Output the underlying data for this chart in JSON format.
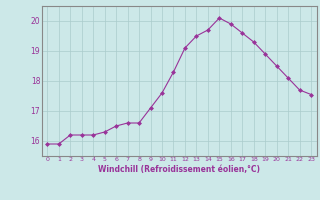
{
  "x": [
    0,
    1,
    2,
    3,
    4,
    5,
    6,
    7,
    8,
    9,
    10,
    11,
    12,
    13,
    14,
    15,
    16,
    17,
    18,
    19,
    20,
    21,
    22,
    23
  ],
  "y": [
    15.9,
    15.9,
    16.2,
    16.2,
    16.2,
    16.3,
    16.5,
    16.6,
    16.6,
    17.1,
    17.6,
    18.3,
    19.1,
    19.5,
    19.7,
    20.1,
    19.9,
    19.6,
    19.3,
    18.9,
    18.5,
    18.1,
    17.7,
    17.55
  ],
  "line_color": "#993399",
  "marker": "D",
  "marker_size": 2.0,
  "bg_color": "#cce8e8",
  "grid_color": "#aacccc",
  "xlabel": "Windchill (Refroidissement éolien,°C)",
  "xlabel_color": "#993399",
  "tick_color": "#993399",
  "ylim": [
    15.5,
    20.5
  ],
  "xlim": [
    -0.5,
    23.5
  ],
  "yticks": [
    16,
    17,
    18,
    19,
    20
  ],
  "xticks": [
    0,
    1,
    2,
    3,
    4,
    5,
    6,
    7,
    8,
    9,
    10,
    11,
    12,
    13,
    14,
    15,
    16,
    17,
    18,
    19,
    20,
    21,
    22,
    23
  ]
}
